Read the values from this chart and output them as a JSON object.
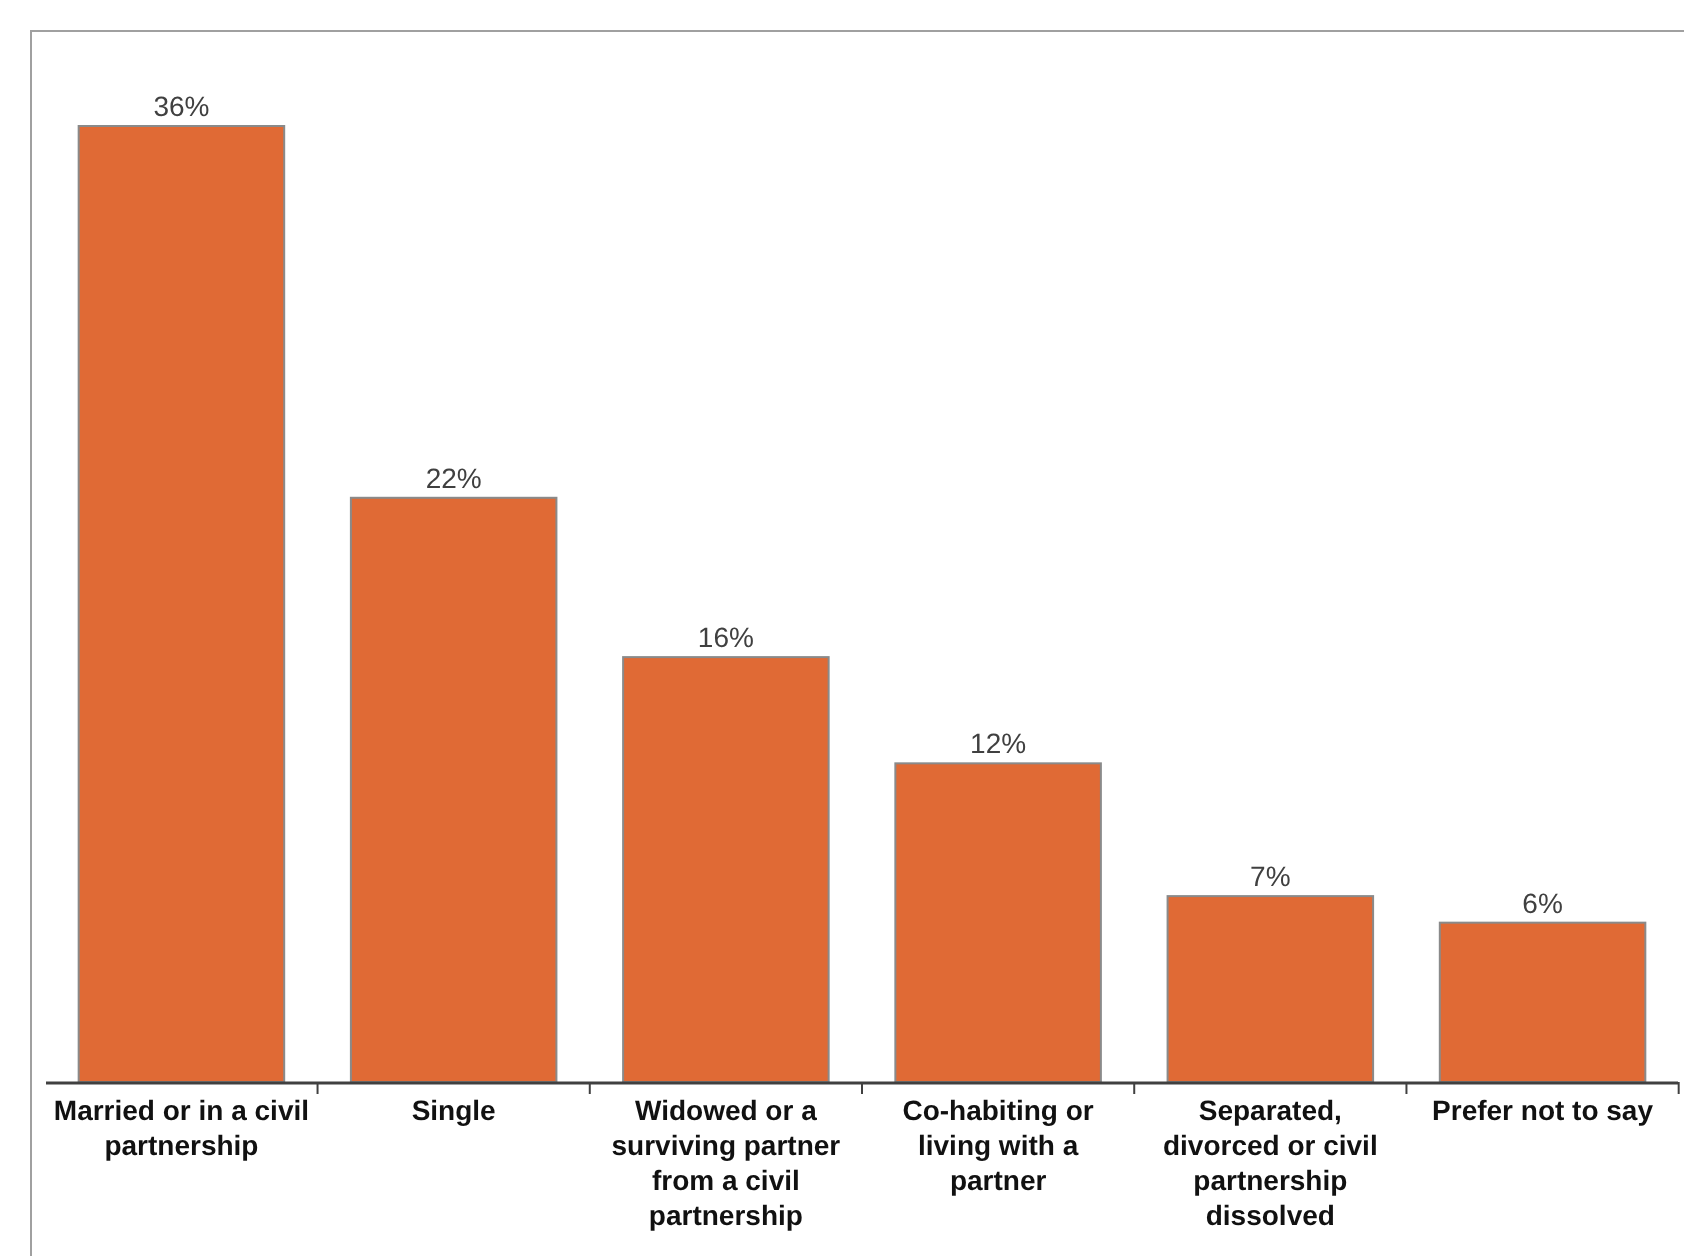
{
  "chart_data": {
    "type": "bar",
    "categories": [
      "Married or in a civil partnership",
      "Single",
      "Widowed or a surviving partner from a civil partnership",
      "Co-habiting or living with a partner",
      "Separated, divorced or civil partnership dissolved",
      "Prefer not to say"
    ],
    "values": [
      36,
      22,
      16,
      12,
      7,
      6
    ],
    "color": "#e06a35",
    "data_labels": true,
    "value_labels": [
      "36%",
      "22%",
      "16%",
      "12%",
      "7%",
      "6%"
    ]
  }
}
